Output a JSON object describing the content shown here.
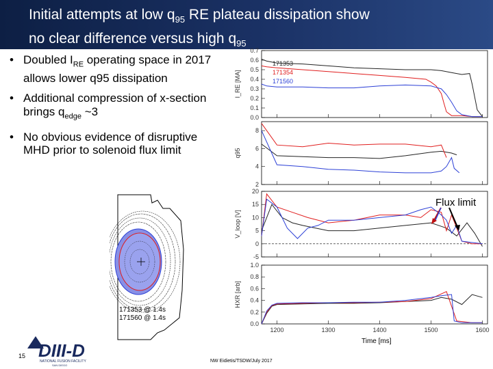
{
  "slide": {
    "title_line1_a": "Initial attempts at low q",
    "title_line1_sub": "95",
    "title_line1_b": " RE plateau dissipation show",
    "title_line2_a": "no clear difference versus high q",
    "title_line2_sub": "95",
    "page_number": "15",
    "author_footer": "NW Eidietis/TSDW/July 2017",
    "logo_text": "DIII-D",
    "logo_sub": "NATIONAL FUSION FACILITY",
    "logo_sub2": "SAN DIEGO"
  },
  "bullets": [
    {
      "prefix": "Doubled I",
      "sub": "RE",
      "suffix": " operating space in 2017 allows lower q95 dissipation"
    },
    {
      "prefix": "Additional compression of x-section brings q",
      "sub": "edge",
      "suffix": " ~3"
    },
    {
      "prefix": "No obvious evidence of disruptive MHD prior to solenoid flux limit",
      "sub": "",
      "suffix": ""
    }
  ],
  "equilibrium": {
    "label1": "171353 @ 1.4s",
    "label2": "171560 @ 1.4s",
    "colors": {
      "shot1": "#e01c1c",
      "shot2": "#2b3fd6"
    }
  },
  "annotation": {
    "flux_limit": "Flux limit"
  },
  "chart_data": {
    "type": "line",
    "xlabel": "Time [ms]",
    "x_ticks": [
      "1200",
      "1300",
      "1400",
      "1500",
      "1600"
    ],
    "xlim": [
      1170,
      1610
    ],
    "series_colors": {
      "171353": "#222222",
      "171354": "#e01c1c",
      "171560": "#2b3fd6"
    },
    "panels": [
      {
        "ylabel": "I_RE [MA]",
        "ylim": [
          0,
          0.7
        ],
        "y_ticks": [
          "0.7",
          "0.6",
          "0.5",
          "0.4",
          "0.3",
          "0.2",
          "0.1",
          "0.0"
        ],
        "legend": [
          "171353",
          "171354",
          "171560"
        ],
        "series": [
          {
            "name": "171353",
            "x": [
              1170,
              1180,
              1200,
              1250,
              1300,
              1350,
              1400,
              1450,
              1500,
              1520,
              1540,
              1560,
              1575,
              1580,
              1590,
              1600
            ],
            "y": [
              0.61,
              0.59,
              0.57,
              0.56,
              0.54,
              0.52,
              0.51,
              0.5,
              0.5,
              0.49,
              0.47,
              0.45,
              0.46,
              0.35,
              0.08,
              0.01
            ]
          },
          {
            "name": "171354",
            "x": [
              1170,
              1180,
              1200,
              1250,
              1300,
              1350,
              1400,
              1450,
              1490,
              1500,
              1510,
              1520,
              1525,
              1530,
              1540,
              1550,
              1560,
              1580,
              1600
            ],
            "y": [
              0.54,
              0.53,
              0.52,
              0.5,
              0.48,
              0.46,
              0.44,
              0.42,
              0.4,
              0.37,
              0.33,
              0.25,
              0.15,
              0.06,
              0.02,
              0.02,
              0.02,
              0.01,
              0.01
            ]
          },
          {
            "name": "171560",
            "x": [
              1170,
              1180,
              1200,
              1250,
              1300,
              1350,
              1400,
              1450,
              1500,
              1520,
              1530,
              1540,
              1550,
              1560,
              1570,
              1580,
              1600
            ],
            "y": [
              0.35,
              0.33,
              0.32,
              0.32,
              0.31,
              0.31,
              0.33,
              0.34,
              0.33,
              0.3,
              0.24,
              0.16,
              0.07,
              0.03,
              0.02,
              0.01,
              0.01
            ]
          }
        ]
      },
      {
        "ylabel": "q95",
        "ylim": [
          2,
          9
        ],
        "y_ticks": [
          "8",
          "6",
          "4",
          "2"
        ],
        "series": [
          {
            "name": "171353",
            "x": [
              1170,
              1200,
              1250,
              1300,
              1350,
              1400,
              1450,
              1500,
              1520,
              1540,
              1550
            ],
            "y": [
              6.5,
              5.2,
              5.1,
              5.0,
              5.0,
              4.9,
              5.2,
              5.6,
              5.7,
              5.5,
              5.3
            ]
          },
          {
            "name": "171354",
            "x": [
              1170,
              1200,
              1250,
              1300,
              1350,
              1400,
              1450,
              1500,
              1520,
              1530
            ],
            "y": [
              8.8,
              6.4,
              6.2,
              6.6,
              6.4,
              6.5,
              6.5,
              6.2,
              6.4,
              5.0
            ]
          },
          {
            "name": "171560",
            "x": [
              1170,
              1200,
              1250,
              1300,
              1350,
              1400,
              1450,
              1500,
              1520,
              1530,
              1540,
              1545,
              1555
            ],
            "y": [
              8.0,
              4.2,
              4.0,
              3.7,
              3.6,
              3.4,
              3.3,
              3.3,
              3.5,
              4.0,
              5.0,
              3.8,
              3.3
            ]
          }
        ]
      },
      {
        "ylabel": "V_loop [V]",
        "ylim": [
          -5,
          20
        ],
        "y_ticks": [
          "20",
          "15",
          "10",
          "5",
          "0",
          "-5"
        ],
        "series": [
          {
            "name": "171353",
            "x": [
              1170,
              1190,
              1210,
              1230,
              1250,
              1300,
              1350,
              1400,
              1450,
              1500,
              1530,
              1550,
              1570,
              1585,
              1600
            ],
            "y": [
              5,
              15,
              10,
              8,
              7,
              5,
              5,
              6,
              7,
              8,
              6,
              3,
              8,
              4,
              -1
            ]
          },
          {
            "name": "171354",
            "x": [
              1170,
              1180,
              1200,
              1230,
              1260,
              1300,
              1350,
              1400,
              1450,
              1480,
              1500,
              1520,
              1530,
              1540,
              1560,
              1580,
              1600
            ],
            "y": [
              3,
              19,
              14,
              12,
              10,
              8,
              9,
              11,
              11,
              10,
              13,
              12,
              5,
              11,
              1,
              0,
              0
            ]
          },
          {
            "name": "171560",
            "x": [
              1170,
              1180,
              1200,
              1220,
              1240,
              1260,
              1280,
              1300,
              1350,
              1400,
              1450,
              1480,
              1500,
              1520,
              1530,
              1540,
              1550,
              1560,
              1600
            ],
            "y": [
              3,
              17,
              14,
              6,
              2,
              6,
              7,
              9,
              9,
              10,
              11,
              13,
              14,
              11,
              9,
              4,
              7,
              1,
              0
            ]
          }
        ]
      },
      {
        "ylabel": "HXR [arb]",
        "ylim": [
          0,
          1
        ],
        "y_ticks": [
          "1.0",
          "0.8",
          "0.6",
          "0.4",
          "0.2",
          "0.0"
        ],
        "series": [
          {
            "name": "171353",
            "x": [
              1170,
              1180,
              1190,
              1200,
              1250,
              1300,
              1350,
              1400,
              1450,
              1500,
              1520,
              1540,
              1560,
              1580,
              1600
            ],
            "y": [
              0,
              0.18,
              0.3,
              0.33,
              0.34,
              0.35,
              0.35,
              0.36,
              0.38,
              0.4,
              0.45,
              0.42,
              0.33,
              0.5,
              0.45
            ]
          },
          {
            "name": "171354",
            "x": [
              1170,
              1180,
              1190,
              1200,
              1250,
              1300,
              1350,
              1400,
              1450,
              1500,
              1530,
              1540,
              1550,
              1580,
              1600
            ],
            "y": [
              0,
              0.2,
              0.31,
              0.34,
              0.35,
              0.36,
              0.36,
              0.37,
              0.38,
              0.43,
              0.55,
              0.3,
              0.05,
              0.02,
              0.02
            ]
          },
          {
            "name": "171560",
            "x": [
              1170,
              1180,
              1190,
              1200,
              1250,
              1300,
              1350,
              1400,
              1450,
              1500,
              1520,
              1540,
              1545,
              1560,
              1600
            ],
            "y": [
              0,
              0.22,
              0.32,
              0.35,
              0.36,
              0.36,
              0.37,
              0.37,
              0.4,
              0.45,
              0.48,
              0.5,
              0.05,
              0.02,
              0.02
            ]
          }
        ]
      }
    ]
  }
}
